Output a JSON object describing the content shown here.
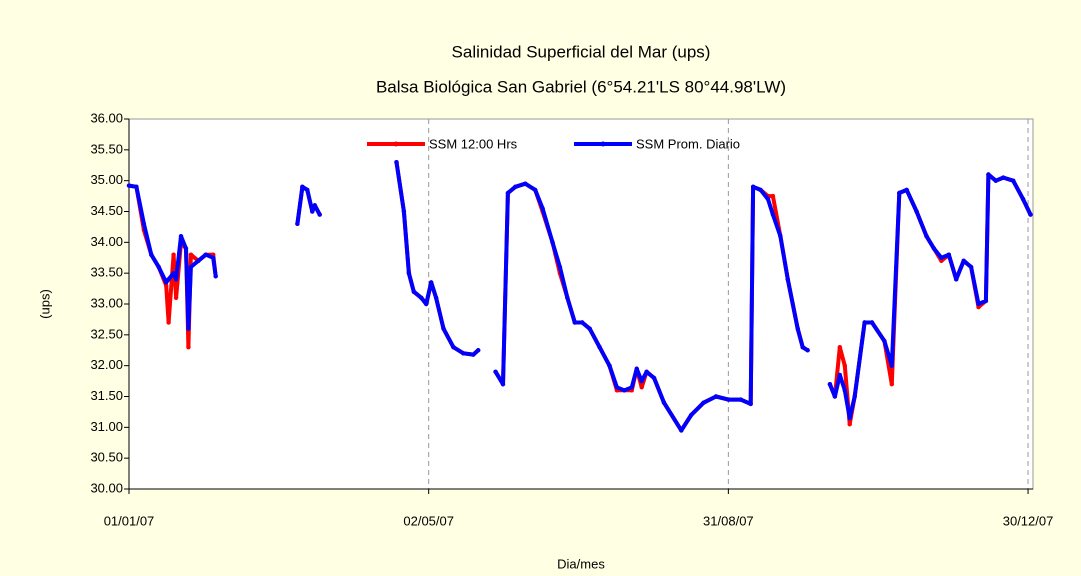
{
  "chart_data": {
    "type": "line",
    "title": "Salinidad Superficial del Mar (ups)",
    "subtitle": "Balsa Biológica San Gabriel (6°54.21'LS 80°44.98'LW)",
    "x_label": "Dia/mes",
    "y_label": "(ups)",
    "x": [
      "01/01/07",
      "04/01/07",
      "07/01/07",
      "10/01/07",
      "13/01/07",
      "16/01/07",
      "17/01/07",
      "19/01/07",
      "20/01/07",
      "22/01/07",
      "24/01/07",
      "25/01/07",
      "26/01/07",
      "29/01/07",
      "01/02/07",
      "04/02/07",
      "05/02/07",
      "20/02/07",
      "10/03/07",
      "12/03/07",
      "14/03/07",
      "16/03/07",
      "17/03/07",
      "19/03/07",
      "01/04/07",
      "19/04/07",
      "22/04/07",
      "24/04/07",
      "26/04/07",
      "29/04/07",
      "01/05/07",
      "03/05/07",
      "05/05/07",
      "08/05/07",
      "12/05/07",
      "16/05/07",
      "20/05/07",
      "22/05/07",
      "26/05/07",
      "29/05/07",
      "01/06/07",
      "03/06/07",
      "06/06/07",
      "10/06/07",
      "14/06/07",
      "17/06/07",
      "21/06/07",
      "24/06/07",
      "27/06/07",
      "30/06/07",
      "03/07/07",
      "06/07/07",
      "10/07/07",
      "14/07/07",
      "17/07/07",
      "20/07/07",
      "23/07/07",
      "25/07/07",
      "27/07/07",
      "29/07/07",
      "01/08/07",
      "05/08/07",
      "12/08/07",
      "16/08/07",
      "21/08/07",
      "26/08/07",
      "31/08/07",
      "05/09/07",
      "09/09/07",
      "10/09/07",
      "13/09/07",
      "16/09/07",
      "18/09/07",
      "21/09/07",
      "24/09/07",
      "28/09/07",
      "30/09/07",
      "02/10/07",
      "06/10/07",
      "11/10/07",
      "13/10/07",
      "15/10/07",
      "17/10/07",
      "19/10/07",
      "21/10/07",
      "25/10/07",
      "28/10/07",
      "02/11/07",
      "05/11/07",
      "08/11/07",
      "11/11/07",
      "15/11/07",
      "19/11/07",
      "22/11/07",
      "25/11/07",
      "28/11/07",
      "01/12/07",
      "04/12/07",
      "07/12/07",
      "10/12/07",
      "13/12/07",
      "14/12/07",
      "17/12/07",
      "20/12/07",
      "24/12/07",
      "28/12/07",
      "31/12/07"
    ],
    "series": [
      {
        "name": "SSM 12:00 Hrs",
        "color": "#ff0000",
        "values": [
          34.92,
          34.9,
          34.2,
          33.8,
          33.6,
          33.3,
          32.7,
          33.8,
          33.1,
          34.0,
          33.9,
          32.3,
          33.8,
          33.7,
          33.8,
          33.8,
          33.45,
          null,
          34.3,
          34.9,
          34.85,
          34.5,
          34.6,
          34.45,
          null,
          35.3,
          34.5,
          33.5,
          33.2,
          33.1,
          33.0,
          33.35,
          33.1,
          32.6,
          32.3,
          32.2,
          32.18,
          32.25,
          null,
          31.9,
          31.7,
          34.8,
          34.9,
          34.95,
          34.85,
          34.5,
          34.0,
          33.5,
          33.1,
          32.7,
          32.7,
          32.6,
          32.3,
          32.0,
          31.6,
          31.6,
          31.6,
          31.95,
          31.65,
          31.9,
          31.8,
          31.4,
          30.95,
          31.2,
          31.4,
          31.5,
          31.45,
          31.45,
          31.38,
          34.9,
          34.85,
          34.75,
          34.75,
          34.1,
          33.4,
          32.6,
          32.3,
          32.25,
          null,
          31.7,
          31.5,
          32.3,
          32.0,
          31.05,
          31.5,
          32.7,
          32.7,
          32.4,
          31.7,
          34.8,
          34.85,
          34.5,
          34.1,
          33.9,
          33.7,
          33.8,
          33.4,
          33.7,
          33.6,
          32.95,
          33.05,
          35.1,
          35.0,
          35.05,
          35.0,
          34.7,
          34.45
        ]
      },
      {
        "name": "SSM Prom. Diario",
        "color": "#0000ff",
        "values": [
          34.92,
          34.9,
          34.3,
          33.8,
          33.6,
          33.35,
          33.4,
          33.5,
          33.4,
          34.1,
          33.9,
          32.6,
          33.6,
          33.7,
          33.8,
          33.75,
          33.45,
          null,
          34.3,
          34.9,
          34.85,
          34.5,
          34.6,
          34.45,
          null,
          35.3,
          34.5,
          33.5,
          33.2,
          33.1,
          33.0,
          33.35,
          33.1,
          32.6,
          32.3,
          32.2,
          32.18,
          32.25,
          null,
          31.9,
          31.7,
          34.8,
          34.9,
          34.95,
          34.85,
          34.55,
          34.0,
          33.6,
          33.1,
          32.7,
          32.7,
          32.6,
          32.3,
          32.0,
          31.65,
          31.6,
          31.65,
          31.95,
          31.75,
          31.9,
          31.8,
          31.4,
          30.95,
          31.2,
          31.4,
          31.5,
          31.45,
          31.45,
          31.38,
          34.9,
          34.85,
          34.7,
          34.45,
          34.1,
          33.4,
          32.6,
          32.3,
          32.25,
          null,
          31.7,
          31.5,
          31.85,
          31.6,
          31.15,
          31.5,
          32.7,
          32.7,
          32.4,
          32.0,
          34.8,
          34.85,
          34.5,
          34.1,
          33.9,
          33.75,
          33.8,
          33.4,
          33.7,
          33.6,
          33.0,
          33.05,
          35.1,
          35.0,
          35.05,
          35.0,
          34.7,
          34.45
        ]
      }
    ],
    "xlim": [
      "01/01/07",
      "31/12/07"
    ],
    "xticks": [
      "01/01/07",
      "02/05/07",
      "31/08/07",
      "30/12/07"
    ],
    "ylim": [
      30,
      36
    ],
    "yticks": [
      {
        "value": 30,
        "label": "30.00"
      },
      {
        "value": 30.5,
        "label": "30.50"
      },
      {
        "value": 31,
        "label": "31.00"
      },
      {
        "value": 31.5,
        "label": "31.50"
      },
      {
        "value": 32,
        "label": "32.00"
      },
      {
        "value": 32.5,
        "label": "32.50"
      },
      {
        "value": 33,
        "label": "33.00"
      },
      {
        "value": 33.5,
        "label": "33.50"
      },
      {
        "value": 34,
        "label": "34.00"
      },
      {
        "value": 34.5,
        "label": "34.50"
      },
      {
        "value": 35,
        "label": "35.00"
      },
      {
        "value": 35.5,
        "label": "35.50"
      },
      {
        "value": 36,
        "label": "36.00"
      }
    ],
    "grid": "x",
    "legend": "top"
  }
}
